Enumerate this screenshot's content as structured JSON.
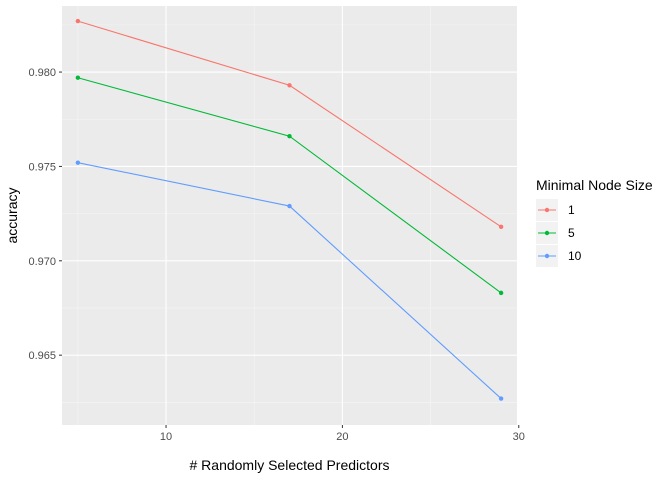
{
  "chart_data": {
    "type": "line",
    "xlabel": "# Randomly Selected Predictors",
    "ylabel": "accuracy",
    "x": [
      5,
      17,
      29
    ],
    "xlim": [
      4.1,
      29.9
    ],
    "ylim": [
      0.9613,
      0.9835
    ],
    "xticks": [
      10,
      20,
      30
    ],
    "xtick_labels": [
      "10",
      "20",
      "30"
    ],
    "yticks": [
      0.965,
      0.97,
      0.975,
      0.98
    ],
    "ytick_labels": [
      "0.965",
      "0.970",
      "0.975",
      "0.980"
    ],
    "grid": true,
    "legend": {
      "title": "Minimal Node Size",
      "position": "right"
    },
    "series": [
      {
        "name": "1",
        "color": "#F8766D",
        "values": [
          0.9827,
          0.9793,
          0.9718
        ]
      },
      {
        "name": "5",
        "color": "#00BA38",
        "values": [
          0.9797,
          0.9766,
          0.9683
        ]
      },
      {
        "name": "10",
        "color": "#619CFF",
        "values": [
          0.9752,
          0.9729,
          0.9627
        ]
      }
    ]
  }
}
